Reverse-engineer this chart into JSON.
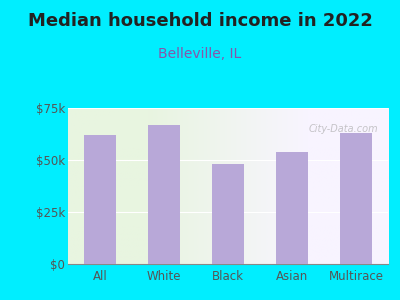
{
  "title": "Median household income in 2022",
  "subtitle": "Belleville, IL",
  "categories": [
    "All",
    "White",
    "Black",
    "Asian",
    "Multirace"
  ],
  "values": [
    62000,
    67000,
    48000,
    54000,
    63000
  ],
  "bar_color": "#b8a8d8",
  "bg_outer": "#00eeff",
  "bg_plot_left": "#e8f5e0",
  "bg_plot_right": "#f8f4ff",
  "title_color": "#222222",
  "subtitle_color": "#8855aa",
  "tick_label_color": "#555555",
  "ylim": [
    0,
    75000
  ],
  "yticks": [
    0,
    25000,
    50000,
    75000
  ],
  "ytick_labels": [
    "$0",
    "$25k",
    "$50k",
    "$75k"
  ],
  "watermark": "City-Data.com",
  "title_fontsize": 13,
  "subtitle_fontsize": 10
}
